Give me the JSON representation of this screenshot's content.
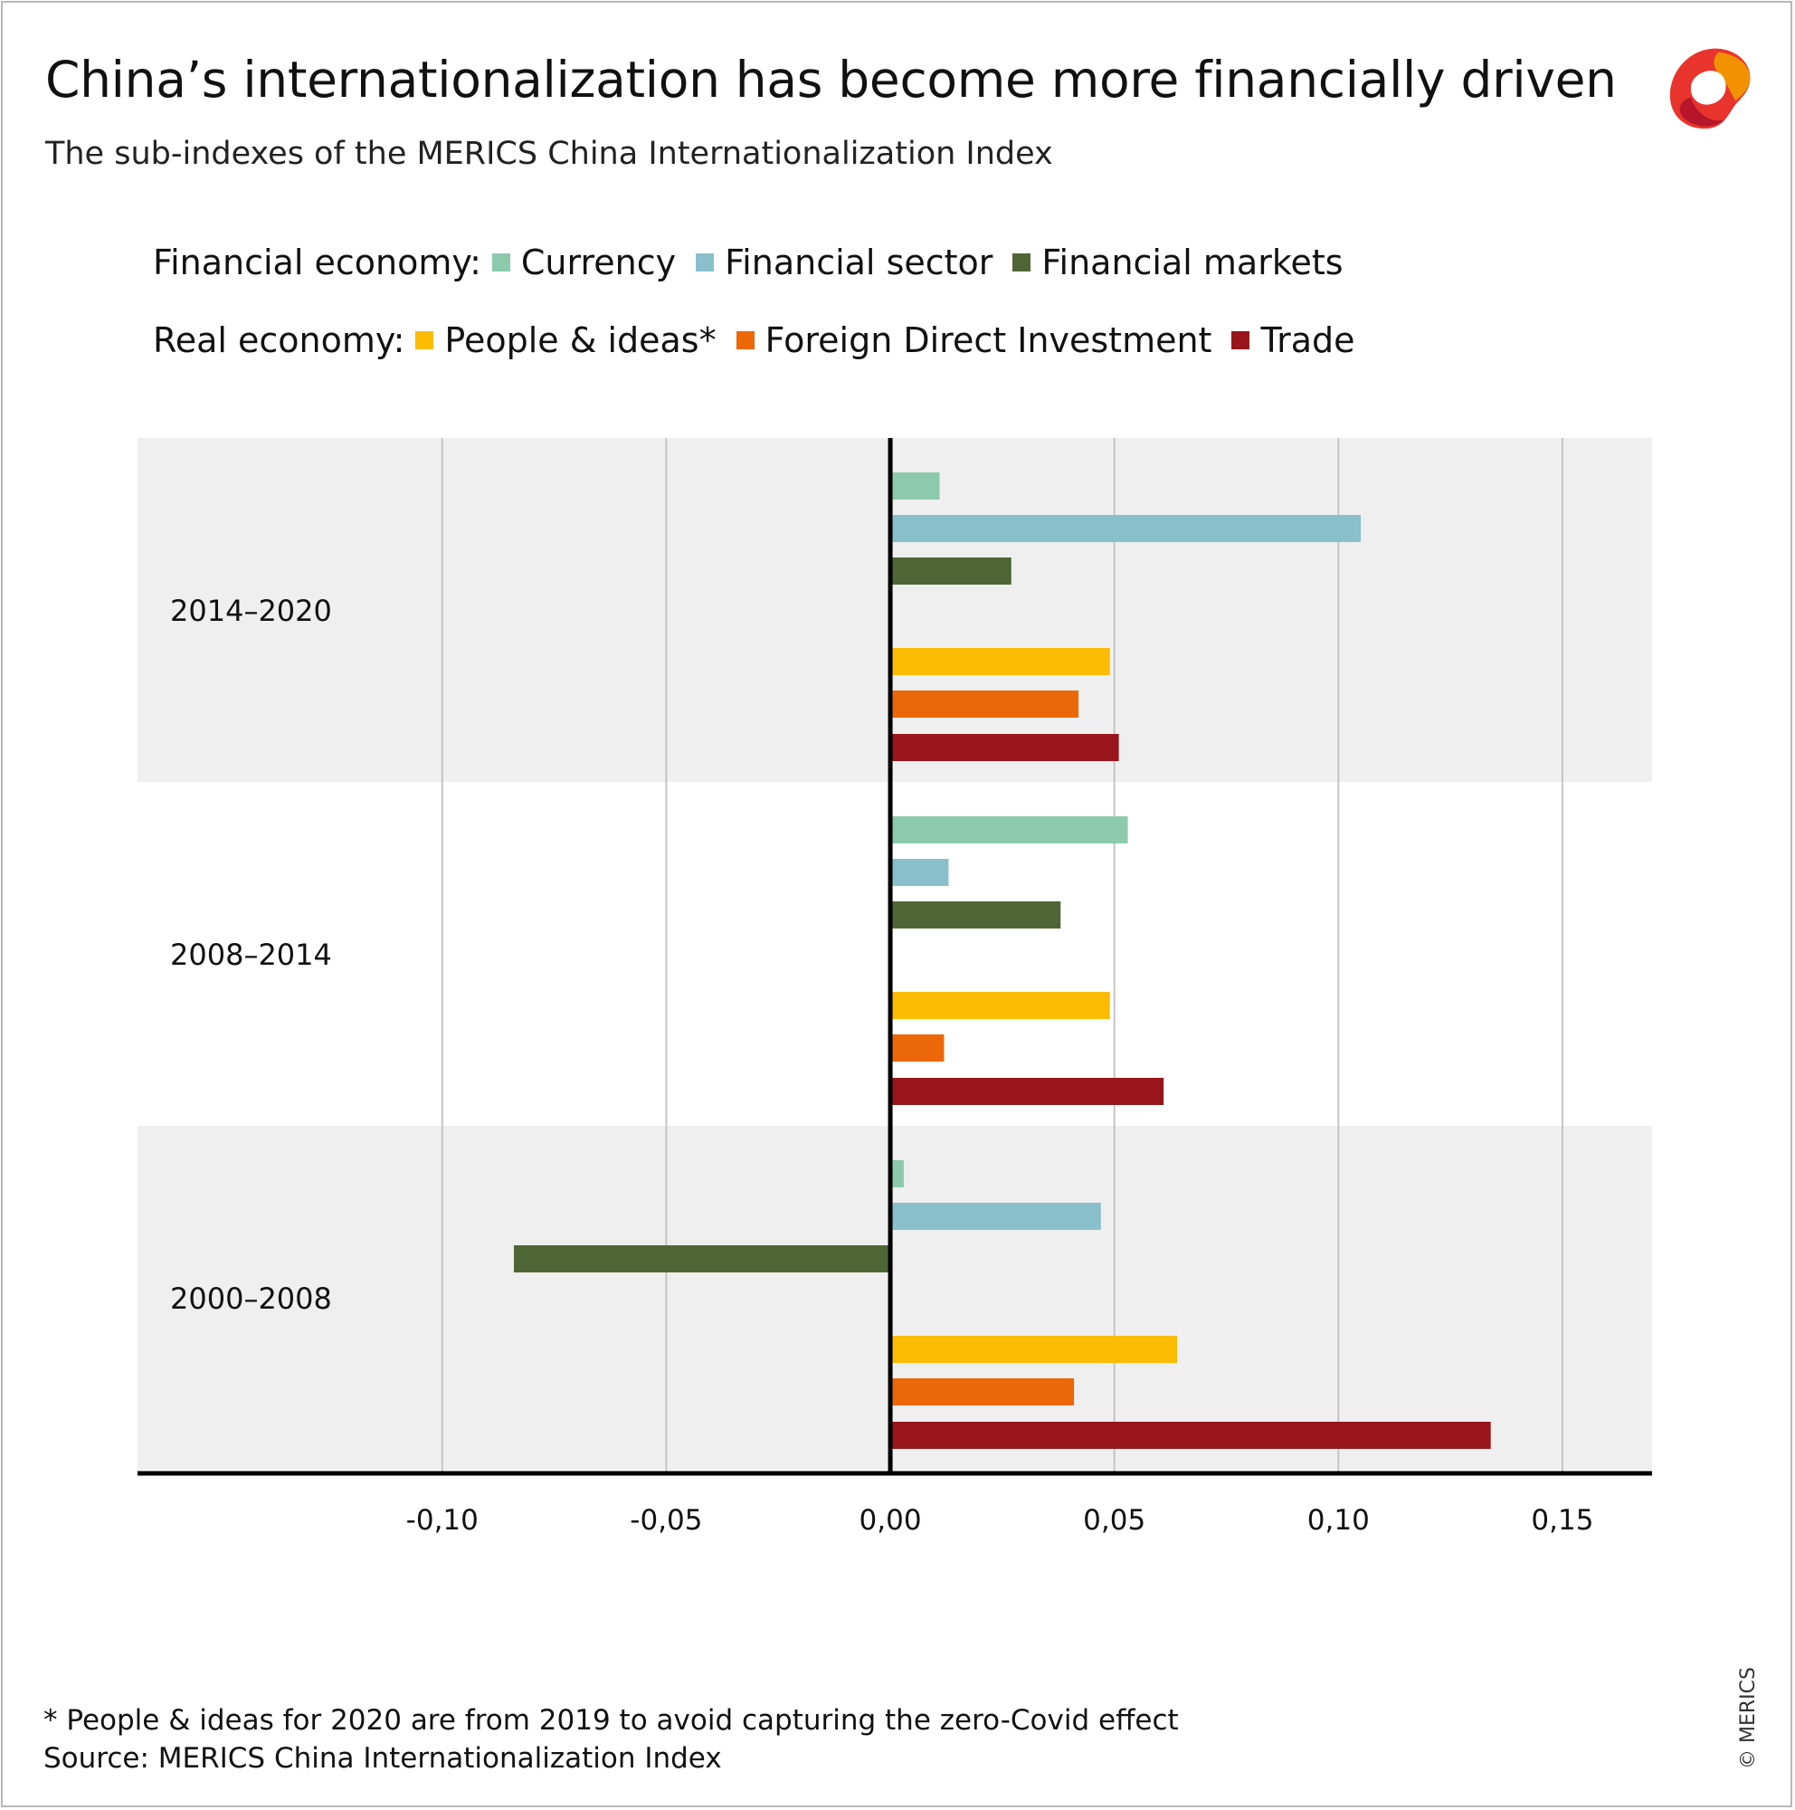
{
  "header": {
    "title": "China’s internationalization has become more financially driven",
    "subtitle": "The sub-indexes of the MERICS China Internationalization Index",
    "logo_name": "merics-logo"
  },
  "legend": {
    "financial_label": "Financial economy:",
    "real_label": "Real economy:",
    "financial_items": [
      {
        "label": "Currency",
        "color": "#8dc9ac"
      },
      {
        "label": "Financial sector",
        "color": "#89c0cb"
      },
      {
        "label": "Financial markets",
        "color": "#4e6535"
      }
    ],
    "real_items": [
      {
        "label": "People & ideas*",
        "color": "#fbbb00"
      },
      {
        "label": "Foreign Direct Investment",
        "color": "#ec6707"
      },
      {
        "label": "Trade",
        "color": "#98161b"
      }
    ]
  },
  "chart_data": {
    "type": "bar",
    "orientation": "horizontal",
    "title": "China’s internationalization has become more financially driven",
    "subtitle": "The sub-indexes of the MERICS China Internationalization Index",
    "xlabel": "",
    "ylabel": "",
    "xlim": [
      -0.168,
      0.17
    ],
    "xticks": [
      -0.1,
      -0.05,
      0.0,
      0.05,
      0.1,
      0.15
    ],
    "xtick_labels": [
      "-0,10",
      "-0,05",
      "0,00",
      "0,05",
      "0,10",
      "0,15"
    ],
    "grid": "vertical",
    "categories": [
      "2014–2020",
      "2008–2014",
      "2000–2008"
    ],
    "series": [
      {
        "name": "Currency",
        "group": "Financial economy",
        "color": "#8dc9ac",
        "values": [
          0.011,
          0.053,
          0.003
        ]
      },
      {
        "name": "Financial sector",
        "group": "Financial economy",
        "color": "#89c0cb",
        "values": [
          0.105,
          0.013,
          0.047
        ]
      },
      {
        "name": "Financial markets",
        "group": "Financial economy",
        "color": "#4e6535",
        "values": [
          0.027,
          0.038,
          -0.084
        ]
      },
      {
        "name": "People & ideas*",
        "group": "Real economy",
        "color": "#fbbb00",
        "values": [
          0.049,
          0.049,
          0.064
        ]
      },
      {
        "name": "Foreign Direct Investment",
        "group": "Real economy",
        "color": "#ec6707",
        "values": [
          0.042,
          0.012,
          0.041
        ]
      },
      {
        "name": "Trade",
        "group": "Real economy",
        "color": "#98161b",
        "values": [
          0.051,
          0.061,
          0.134
        ]
      }
    ]
  },
  "footer": {
    "note": "* People & ideas for 2020 are from 2019 to avoid capturing the zero-Covid effect",
    "source": "Source: MERICS China Internationalization Index",
    "copyright": "© MERICS"
  }
}
